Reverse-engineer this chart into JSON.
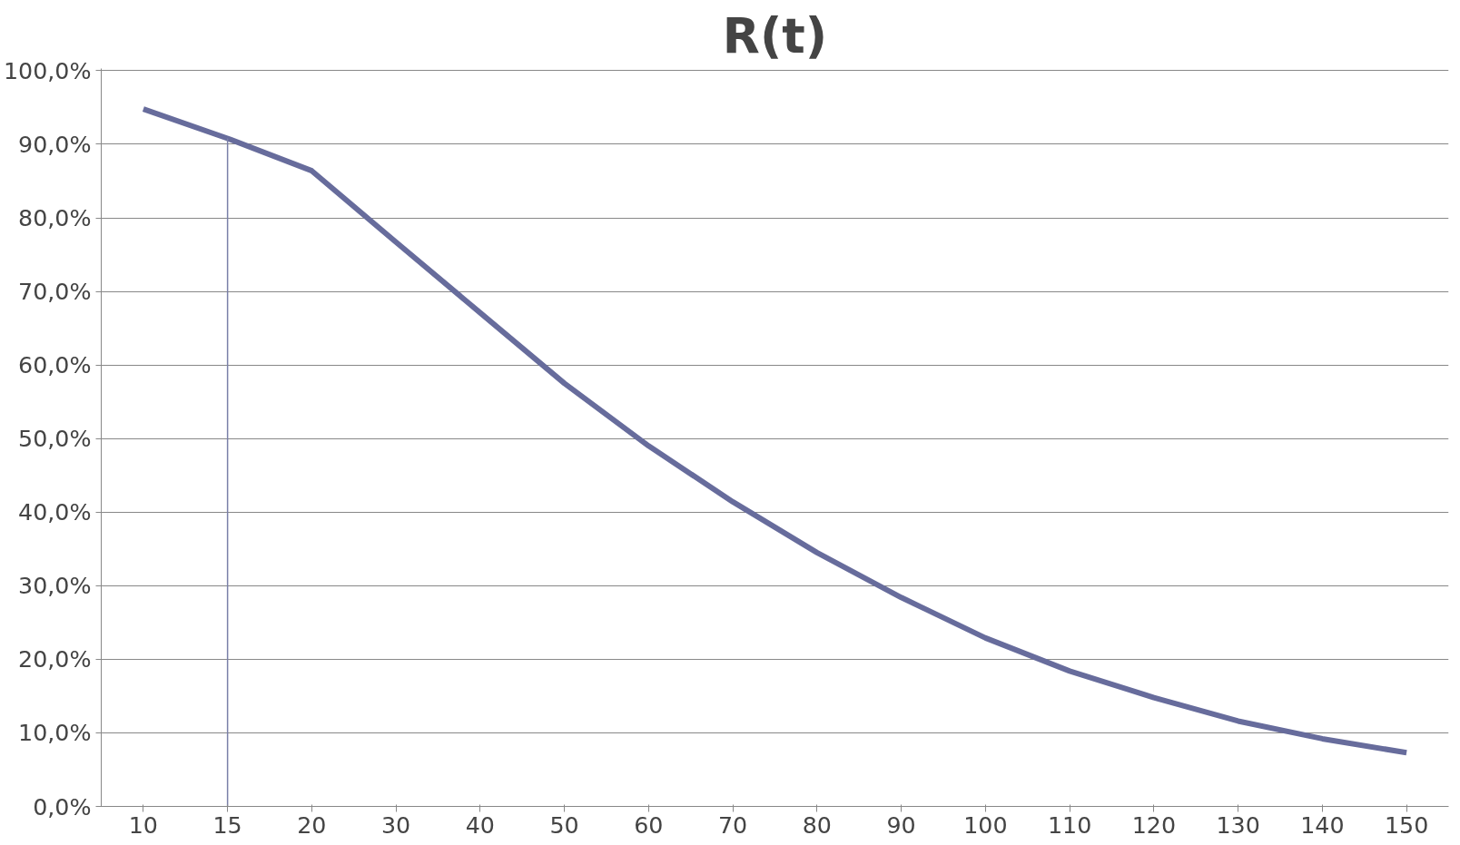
{
  "chart_data": {
    "type": "line",
    "title": "R(t)",
    "categories": [
      "10",
      "15",
      "20",
      "30",
      "40",
      "50",
      "60",
      "70",
      "80",
      "90",
      "100",
      "110",
      "120",
      "130",
      "140",
      "150"
    ],
    "series": [
      {
        "color": "#676c9c",
        "values": [
          94.8,
          90.8,
          86.4,
          76.7,
          67.1,
          57.5,
          49.0,
          41.4,
          34.5,
          28.4,
          22.9,
          18.4,
          14.8,
          11.6,
          9.2,
          7.3
        ]
      }
    ],
    "ylim": [
      0,
      100
    ],
    "yticks": [
      {
        "value": 0,
        "label": "0,0%"
      },
      {
        "value": 10,
        "label": "10,0%"
      },
      {
        "value": 20,
        "label": "20,0%"
      },
      {
        "value": 30,
        "label": "30,0%"
      },
      {
        "value": 40,
        "label": "40,0%"
      },
      {
        "value": 50,
        "label": "50,0%"
      },
      {
        "value": 60,
        "label": "60,0%"
      },
      {
        "value": 70,
        "label": "70,0%"
      },
      {
        "value": 80,
        "label": "80,0%"
      },
      {
        "value": 90,
        "label": "90,0%"
      },
      {
        "value": 100,
        "label": "100,0%"
      }
    ],
    "grid": "y",
    "marker": "none",
    "line_style": "solid",
    "ref_lines": [
      {
        "axis": "x",
        "value": "15",
        "color": "#7a80a8"
      }
    ]
  }
}
